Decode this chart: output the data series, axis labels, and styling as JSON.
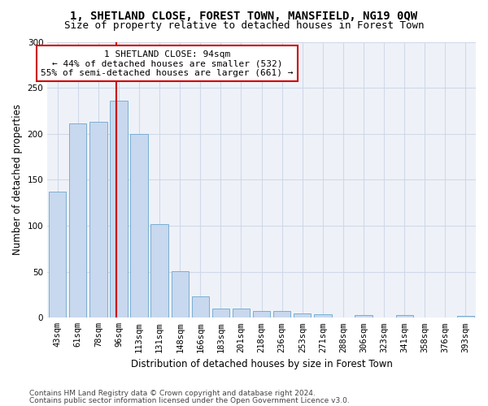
{
  "title": "1, SHETLAND CLOSE, FOREST TOWN, MANSFIELD, NG19 0QW",
  "subtitle": "Size of property relative to detached houses in Forest Town",
  "xlabel": "Distribution of detached houses by size in Forest Town",
  "ylabel": "Number of detached properties",
  "bar_color": "#c8d8ee",
  "bar_edge_color": "#7aafd4",
  "categories": [
    "43sqm",
    "61sqm",
    "78sqm",
    "96sqm",
    "113sqm",
    "131sqm",
    "148sqm",
    "166sqm",
    "183sqm",
    "201sqm",
    "218sqm",
    "236sqm",
    "253sqm",
    "271sqm",
    "288sqm",
    "306sqm",
    "323sqm",
    "341sqm",
    "358sqm",
    "376sqm",
    "393sqm"
  ],
  "values": [
    137,
    211,
    213,
    236,
    200,
    102,
    51,
    23,
    10,
    10,
    7,
    7,
    5,
    4,
    0,
    3,
    0,
    3,
    0,
    0,
    2
  ],
  "property_label": "1 SHETLAND CLOSE: 94sqm",
  "annotation_line1": "← 44% of detached houses are smaller (532)",
  "annotation_line2": "55% of semi-detached houses are larger (661) →",
  "vline_x": 2.9,
  "ylim": [
    0,
    300
  ],
  "yticks": [
    0,
    50,
    100,
    150,
    200,
    250,
    300
  ],
  "grid_color": "#d0d8e8",
  "vline_color": "#cc0000",
  "annotation_box_facecolor": "#ffffff",
  "annotation_box_edgecolor": "#cc0000",
  "footnote1": "Contains HM Land Registry data © Crown copyright and database right 2024.",
  "footnote2": "Contains public sector information licensed under the Open Government Licence v3.0.",
  "title_fontsize": 10,
  "subtitle_fontsize": 9,
  "axis_label_fontsize": 8.5,
  "tick_fontsize": 7.5,
  "annotation_fontsize": 8,
  "footnote_fontsize": 6.5,
  "bg_color": "#eef2f8"
}
